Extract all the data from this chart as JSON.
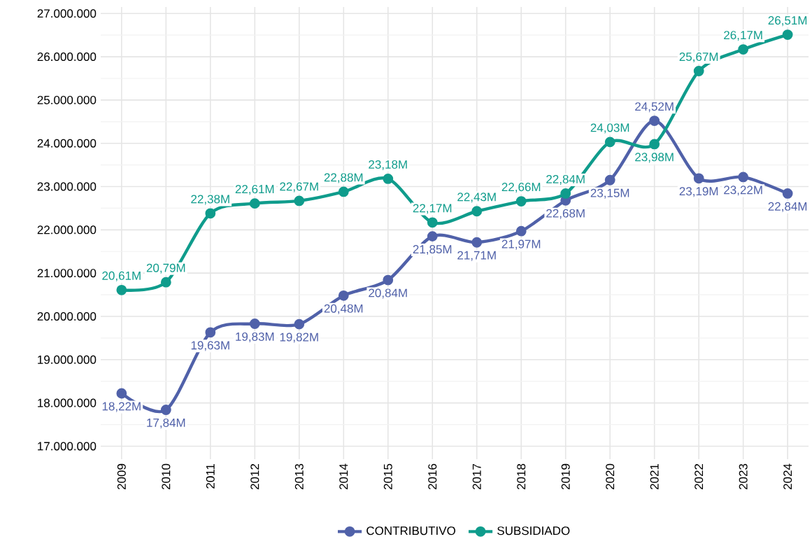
{
  "chart_data": {
    "type": "line",
    "categories": [
      "2009",
      "2010",
      "2011",
      "2012",
      "2013",
      "2014",
      "2015",
      "2016",
      "2017",
      "2018",
      "2019",
      "2020",
      "2021",
      "2022",
      "2023",
      "2024"
    ],
    "series": [
      {
        "name": "CONTRIBUTIVO",
        "color": "#5061a9",
        "values": [
          18220000,
          17840000,
          19630000,
          19830000,
          19820000,
          20480000,
          20840000,
          21850000,
          21710000,
          21970000,
          22680000,
          23150000,
          24520000,
          23190000,
          23220000,
          22840000
        ],
        "value_labels": [
          "18,22M",
          "17,84M",
          "19,63M",
          "19,83M",
          "19,82M",
          "20,48M",
          "20,84M",
          "21,85M",
          "21,71M",
          "21,97M",
          "22,68M",
          "23,15M",
          "24,52M",
          "23,19M",
          "23,22M",
          "22,84M"
        ]
      },
      {
        "name": "SUBSIDIADO",
        "color": "#0f9c8c",
        "values": [
          20610000,
          20790000,
          22380000,
          22610000,
          22670000,
          22880000,
          23180000,
          22170000,
          22430000,
          22660000,
          22840000,
          24030000,
          23980000,
          25670000,
          26170000,
          26510000
        ],
        "value_labels": [
          "20,61M",
          "20,79M",
          "22,38M",
          "22,61M",
          "22,67M",
          "22,88M",
          "23,18M",
          "22,17M",
          "22,43M",
          "22,66M",
          "22,84M",
          "24,03M",
          "23,98M",
          "25,67M",
          "26,17M",
          "26,51M"
        ]
      }
    ],
    "ylim": [
      16700000,
      27150000
    ],
    "yticks": [
      {
        "value": 17000000,
        "label": "17.000.000"
      },
      {
        "value": 17500000,
        "label": null
      },
      {
        "value": 18000000,
        "label": "18.000.000"
      },
      {
        "value": 18500000,
        "label": null
      },
      {
        "value": 19000000,
        "label": "19.000.000"
      },
      {
        "value": 19500000,
        "label": null
      },
      {
        "value": 20000000,
        "label": "20.000.000"
      },
      {
        "value": 20500000,
        "label": null
      },
      {
        "value": 21000000,
        "label": "21.000.000"
      },
      {
        "value": 21500000,
        "label": null
      },
      {
        "value": 22000000,
        "label": "22.000.000"
      },
      {
        "value": 22500000,
        "label": null
      },
      {
        "value": 23000000,
        "label": "23.000.000"
      },
      {
        "value": 23500000,
        "label": null
      },
      {
        "value": 24000000,
        "label": "24.000.000"
      },
      {
        "value": 24500000,
        "label": null
      },
      {
        "value": 25000000,
        "label": "25.000.000"
      },
      {
        "value": 25500000,
        "label": null
      },
      {
        "value": 26000000,
        "label": "26.000.000"
      },
      {
        "value": 26500000,
        "label": null
      },
      {
        "value": 27000000,
        "label": "27.000.000"
      }
    ],
    "grid": true,
    "legend": "bottom",
    "marker": "circle",
    "line_style": "solid"
  }
}
